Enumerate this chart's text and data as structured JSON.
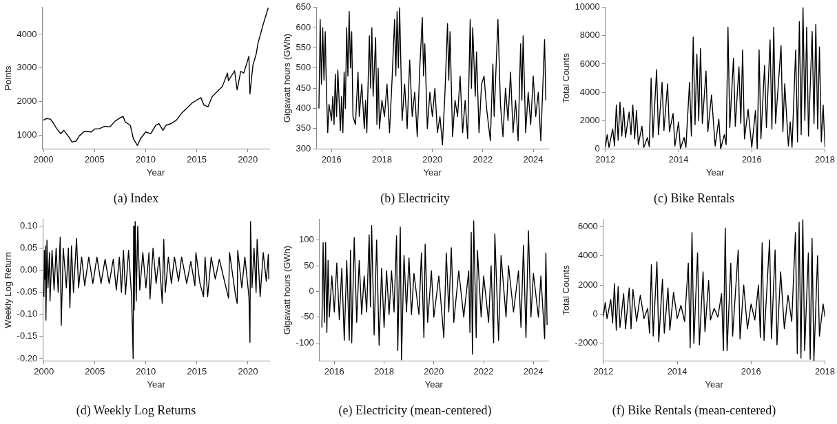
{
  "chart_data": [
    {
      "type": "line",
      "title": "(a) Index",
      "xlabel": "Year",
      "ylabel": "Points",
      "color": "#000000",
      "xlim": [
        1999.9,
        2022.1
      ],
      "xticks": [
        2000,
        2005,
        2010,
        2015,
        2020
      ],
      "ylim": [
        600,
        4800
      ],
      "yticks": [
        1000,
        2000,
        3000,
        4000
      ],
      "x": [
        2000,
        2000.3,
        2000.7,
        2001,
        2001.3,
        2001.7,
        2002,
        2002.5,
        2002.8,
        2003.2,
        2003.5,
        2004,
        2004.7,
        2005,
        2005.5,
        2006,
        2006.5,
        2007,
        2007.5,
        2007.8,
        2008,
        2008.5,
        2008.8,
        2009.2,
        2009.5,
        2010,
        2010.5,
        2011,
        2011.3,
        2011.7,
        2012,
        2012.5,
        2013,
        2013.5,
        2014,
        2014.5,
        2015,
        2015.4,
        2015.7,
        2016.1,
        2016.5,
        2017,
        2017.5,
        2018,
        2018.1,
        2018.7,
        2018.95,
        2019.3,
        2019.6,
        2020.1,
        2020.2,
        2020.5,
        2020.8,
        2021,
        2021.5,
        2021.9,
        2022
      ],
      "values": [
        1450,
        1500,
        1480,
        1350,
        1200,
        1050,
        1150,
        950,
        800,
        830,
        980,
        1120,
        1100,
        1190,
        1200,
        1270,
        1250,
        1420,
        1520,
        1560,
        1400,
        1300,
        900,
        700,
        900,
        1100,
        1050,
        1300,
        1350,
        1150,
        1300,
        1350,
        1450,
        1650,
        1800,
        1950,
        2050,
        2120,
        1900,
        1850,
        2150,
        2300,
        2450,
        2850,
        2620,
        2920,
        2350,
        2900,
        2850,
        3350,
        2230,
        3100,
        3400,
        3750,
        4300,
        4700,
        4790
      ]
    },
    {
      "type": "line",
      "title": "(b) Electricity",
      "xlabel": "Year",
      "ylabel": "Gigawatt hours (GWh)",
      "color": "#000000",
      "xlim": [
        2015.4,
        2024.6
      ],
      "xticks": [
        2016,
        2018,
        2020,
        2022,
        2024
      ],
      "ylim": [
        300,
        650
      ],
      "yticks": [
        300,
        350,
        400,
        450,
        500,
        550,
        600,
        650
      ],
      "x": [
        2015.5,
        2015.55,
        2015.6,
        2015.65,
        2015.7,
        2015.75,
        2015.8,
        2015.85,
        2015.9,
        2016.0,
        2016.05,
        2016.1,
        2016.15,
        2016.2,
        2016.25,
        2016.35,
        2016.4,
        2016.45,
        2016.5,
        2016.55,
        2016.6,
        2016.65,
        2016.7,
        2016.75,
        2016.8,
        2016.85,
        2016.95,
        2017.05,
        2017.1,
        2017.2,
        2017.3,
        2017.35,
        2017.4,
        2017.5,
        2017.55,
        2017.6,
        2017.65,
        2017.75,
        2017.8,
        2017.85,
        2017.9,
        2018.0,
        2018.1,
        2018.2,
        2018.3,
        2018.4,
        2018.5,
        2018.55,
        2018.6,
        2018.65,
        2018.7,
        2018.8,
        2018.9,
        2019.0,
        2019.1,
        2019.2,
        2019.3,
        2019.4,
        2019.5,
        2019.6,
        2019.65,
        2019.7,
        2019.8,
        2019.9,
        2020.0,
        2020.1,
        2020.2,
        2020.3,
        2020.4,
        2020.5,
        2020.6,
        2020.65,
        2020.7,
        2020.8,
        2020.9,
        2021.0,
        2021.1,
        2021.2,
        2021.3,
        2021.4,
        2021.5,
        2021.55,
        2021.6,
        2021.7,
        2021.75,
        2021.85,
        2021.95,
        2022.05,
        2022.15,
        2022.3,
        2022.4,
        2022.45,
        2022.6,
        2022.7,
        2022.8,
        2022.9,
        2023.0,
        2023.1,
        2023.2,
        2023.3,
        2023.4,
        2023.5,
        2023.55,
        2023.6,
        2023.7,
        2023.8,
        2023.9,
        2024.0,
        2024.1,
        2024.2,
        2024.3,
        2024.45,
        2024.5
      ],
      "values": [
        400,
        620,
        460,
        600,
        470,
        590,
        440,
        340,
        410,
        370,
        430,
        360,
        485,
        380,
        495,
        345,
        430,
        340,
        490,
        400,
        600,
        480,
        640,
        500,
        590,
        380,
        360,
        490,
        380,
        460,
        350,
        420,
        340,
        580,
        450,
        600,
        430,
        575,
        360,
        500,
        350,
        420,
        380,
        460,
        340,
        470,
        620,
        480,
        640,
        500,
        650,
        370,
        460,
        350,
        520,
        380,
        440,
        330,
        500,
        625,
        480,
        560,
        350,
        440,
        380,
        450,
        340,
        380,
        310,
        440,
        610,
        470,
        590,
        330,
        420,
        380,
        480,
        340,
        420,
        325,
        620,
        450,
        600,
        430,
        540,
        340,
        460,
        480,
        400,
        320,
        510,
        380,
        620,
        410,
        330,
        450,
        370,
        490,
        340,
        420,
        320,
        560,
        420,
        580,
        340,
        440,
        360,
        480,
        380,
        440,
        320,
        570,
        420
      ]
    },
    {
      "type": "line",
      "title": "(c) Bike Rentals",
      "xlabel": "Year",
      "ylabel": "Total Counts",
      "color": "#000000",
      "xlim": [
        2012,
        2018
      ],
      "xticks": [
        2012,
        2014,
        2016,
        2018
      ],
      "ylim": [
        0,
        10000
      ],
      "yticks": [
        0,
        2000,
        4000,
        6000,
        8000,
        10000
      ],
      "x": [
        2012.0,
        2012.05,
        2012.1,
        2012.2,
        2012.25,
        2012.3,
        2012.35,
        2012.4,
        2012.45,
        2012.5,
        2012.55,
        2012.65,
        2012.7,
        2012.75,
        2012.8,
        2012.85,
        2012.9,
        2013.0,
        2013.05,
        2013.15,
        2013.2,
        2013.25,
        2013.3,
        2013.4,
        2013.45,
        2013.55,
        2013.6,
        2013.7,
        2013.75,
        2013.85,
        2013.9,
        2014.0,
        2014.05,
        2014.15,
        2014.2,
        2014.3,
        2014.35,
        2014.4,
        2014.45,
        2014.5,
        2014.55,
        2014.6,
        2014.65,
        2014.75,
        2014.8,
        2014.9,
        2015.0,
        2015.1,
        2015.15,
        2015.25,
        2015.3,
        2015.35,
        2015.4,
        2015.5,
        2015.55,
        2015.65,
        2015.7,
        2015.75,
        2015.8,
        2015.9,
        2016.0,
        2016.1,
        2016.15,
        2016.2,
        2016.25,
        2016.35,
        2016.4,
        2016.5,
        2016.55,
        2016.6,
        2016.65,
        2016.8,
        2016.85,
        2016.9,
        2017.0,
        2017.05,
        2017.1,
        2017.2,
        2017.25,
        2017.3,
        2017.35,
        2017.4,
        2017.45,
        2017.5,
        2017.55,
        2017.65,
        2017.7,
        2017.75,
        2017.8,
        2017.85,
        2017.9,
        2017.95,
        2018.0
      ],
      "values": [
        100,
        1000,
        100,
        1400,
        200,
        3100,
        600,
        3300,
        900,
        2900,
        800,
        2600,
        1000,
        3100,
        700,
        2700,
        300,
        1600,
        100,
        800,
        150,
        5000,
        800,
        5600,
        1000,
        4700,
        1300,
        4600,
        1200,
        2500,
        200,
        1900,
        0,
        800,
        100,
        4700,
        900,
        7900,
        1700,
        6700,
        2000,
        7100,
        1800,
        5500,
        1200,
        3800,
        200,
        2100,
        0,
        1000,
        300,
        8600,
        1500,
        6400,
        1600,
        5800,
        1800,
        7000,
        700,
        2800,
        100,
        2700,
        0,
        7000,
        700,
        5900,
        1500,
        7700,
        1400,
        8600,
        1800,
        7300,
        1200,
        4600,
        200,
        1900,
        100,
        7000,
        500,
        9000,
        1000,
        10000,
        2000,
        8600,
        900,
        8300,
        1800,
        8800,
        1400,
        7200,
        500,
        3100,
        100
      ]
    },
    {
      "type": "line",
      "title": "(d) Weekly Log Returns",
      "xlabel": "Year",
      "ylabel": "Weekly Log Return",
      "color": "#000000",
      "xlim": [
        1999.9,
        2022.1
      ],
      "xticks": [
        2000,
        2005,
        2010,
        2015,
        2020
      ],
      "ylim": [
        -0.205,
        0.115
      ],
      "yticks": [
        {
          "value": -0.2,
          "label": "-0.20"
        },
        {
          "value": -0.15,
          "label": "-0.15"
        },
        {
          "value": -0.1,
          "label": "-0.10"
        },
        {
          "value": -0.05,
          "label": "-0.05"
        },
        {
          "value": 0,
          "label": "0.00"
        },
        {
          "value": 0.05,
          "label": "0.05"
        },
        {
          "value": 0.1,
          "label": "0.10"
        }
      ],
      "x": [
        2000.0,
        2000.05,
        2000.1,
        2000.15,
        2000.2,
        2000.3,
        2000.4,
        2000.55,
        2000.6,
        2000.8,
        2001.0,
        2001.2,
        2001.4,
        2001.6,
        2001.7,
        2001.9,
        2002.2,
        2002.4,
        2002.55,
        2002.7,
        2002.9,
        2003.2,
        2003.4,
        2003.7,
        2004.0,
        2004.4,
        2004.8,
        2005.2,
        2005.6,
        2006.0,
        2006.4,
        2006.8,
        2007.1,
        2007.4,
        2007.6,
        2007.8,
        2008.0,
        2008.3,
        2008.6,
        2008.75,
        2008.8,
        2008.85,
        2008.95,
        2009.05,
        2009.2,
        2009.4,
        2009.7,
        2010.0,
        2010.3,
        2010.4,
        2010.7,
        2011.0,
        2011.3,
        2011.6,
        2011.75,
        2011.9,
        2012.2,
        2012.5,
        2012.8,
        2013.2,
        2013.5,
        2014.0,
        2014.4,
        2014.8,
        2014.9,
        2015.3,
        2015.65,
        2015.8,
        2016.05,
        2016.4,
        2016.8,
        2017.2,
        2017.6,
        2018.1,
        2018.2,
        2018.8,
        2018.95,
        2019.0,
        2019.4,
        2019.7,
        2020.1,
        2020.2,
        2020.25,
        2020.4,
        2020.6,
        2020.8,
        2020.9,
        2021.2,
        2021.5,
        2021.8,
        2022.0,
        2022.05
      ],
      "values": [
        -0.06,
        0.045,
        -0.02,
        0.055,
        -0.113,
        0.068,
        -0.04,
        0.04,
        -0.07,
        0.045,
        -0.045,
        0.05,
        -0.05,
        0.075,
        -0.125,
        0.05,
        -0.04,
        0.05,
        -0.085,
        0.055,
        -0.05,
        0.072,
        -0.04,
        0.03,
        -0.035,
        0.03,
        -0.03,
        0.03,
        -0.03,
        0.025,
        -0.03,
        0.025,
        -0.045,
        0.03,
        -0.05,
        0.045,
        -0.055,
        0.045,
        -0.06,
        -0.2,
        0.1,
        -0.09,
        0.11,
        -0.07,
        0.1,
        -0.045,
        0.04,
        -0.04,
        0.04,
        -0.065,
        0.05,
        -0.03,
        0.03,
        -0.075,
        0.07,
        -0.05,
        0.03,
        -0.03,
        0.03,
        -0.025,
        0.03,
        -0.03,
        0.02,
        -0.035,
        0.04,
        -0.03,
        -0.06,
        0.03,
        -0.06,
        0.03,
        -0.02,
        0.025,
        -0.015,
        -0.063,
        0.04,
        -0.06,
        -0.075,
        0.045,
        -0.04,
        0.03,
        -0.06,
        -0.163,
        0.11,
        -0.04,
        0.05,
        -0.05,
        0.07,
        -0.06,
        0.04,
        -0.025,
        0.036,
        -0.02
      ]
    },
    {
      "type": "line",
      "title": "(e) Electricity (mean-centered)",
      "xlabel": "Year",
      "ylabel": "Gigawatt hours (GWh)",
      "color": "#000000",
      "xlim": [
        2015.4,
        2024.6
      ],
      "xticks": [
        2016,
        2018,
        2020,
        2022,
        2024
      ],
      "ylim": [
        -135,
        140
      ],
      "yticks": [
        -100,
        -50,
        0,
        50,
        100
      ],
      "x": [
        2015.5,
        2015.55,
        2015.6,
        2015.65,
        2015.7,
        2015.75,
        2015.8,
        2015.9,
        2016.0,
        2016.1,
        2016.2,
        2016.3,
        2016.4,
        2016.5,
        2016.6,
        2016.65,
        2016.7,
        2016.8,
        2016.9,
        2017.0,
        2017.1,
        2017.2,
        2017.3,
        2017.4,
        2017.45,
        2017.5,
        2017.6,
        2017.7,
        2017.8,
        2017.9,
        2018.0,
        2018.1,
        2018.2,
        2018.3,
        2018.4,
        2018.5,
        2018.55,
        2018.65,
        2018.7,
        2018.8,
        2018.9,
        2019.0,
        2019.1,
        2019.2,
        2019.4,
        2019.5,
        2019.6,
        2019.65,
        2019.75,
        2019.9,
        2020.0,
        2020.2,
        2020.4,
        2020.5,
        2020.6,
        2020.7,
        2020.8,
        2021.0,
        2021.2,
        2021.4,
        2021.45,
        2021.5,
        2021.55,
        2021.6,
        2021.7,
        2021.75,
        2021.9,
        2022.0,
        2022.2,
        2022.3,
        2022.4,
        2022.45,
        2022.6,
        2022.7,
        2022.9,
        2023.0,
        2023.2,
        2023.4,
        2023.5,
        2023.6,
        2023.7,
        2023.8,
        2023.9,
        2024.0,
        2024.2,
        2024.3,
        2024.45,
        2024.5,
        2024.55
      ],
      "values": [
        -70,
        95,
        -60,
        95,
        -80,
        60,
        -50,
        30,
        -40,
        55,
        -55,
        45,
        -95,
        60,
        -95,
        80,
        -100,
        105,
        -60,
        60,
        -45,
        30,
        -40,
        110,
        -30,
        128,
        -85,
        100,
        -105,
        45,
        -70,
        40,
        -45,
        40,
        -40,
        108,
        -115,
        125,
        -133,
        70,
        -40,
        65,
        -45,
        35,
        -45,
        75,
        -90,
        92,
        -60,
        40,
        -50,
        30,
        -90,
        75,
        -40,
        85,
        -60,
        40,
        -50,
        40,
        -80,
        115,
        -122,
        137,
        -90,
        80,
        -50,
        30,
        -60,
        50,
        -100,
        112,
        -95,
        70,
        -50,
        50,
        -40,
        40,
        -70,
        90,
        -90,
        118,
        -50,
        35,
        -50,
        30,
        -92,
        75,
        -65
      ]
    },
    {
      "type": "line",
      "title": "(f) Bike Rentals (mean-centered)",
      "xlabel": "Year",
      "ylabel": "Total Counts",
      "color": "#000000",
      "xlim": [
        2012,
        2018
      ],
      "xticks": [
        2012,
        2014,
        2016,
        2018
      ],
      "ylim": [
        -3200,
        6500
      ],
      "yticks": [
        -2000,
        0,
        2000,
        4000,
        6000
      ],
      "x": [
        2012.0,
        2012.05,
        2012.1,
        2012.2,
        2012.25,
        2012.3,
        2012.35,
        2012.4,
        2012.45,
        2012.55,
        2012.6,
        2012.7,
        2012.75,
        2012.8,
        2012.9,
        2013.0,
        2013.1,
        2013.2,
        2013.25,
        2013.3,
        2013.35,
        2013.45,
        2013.5,
        2013.6,
        2013.65,
        2013.75,
        2013.8,
        2013.9,
        2014.0,
        2014.1,
        2014.2,
        2014.3,
        2014.35,
        2014.4,
        2014.45,
        2014.55,
        2014.6,
        2014.7,
        2014.75,
        2014.85,
        2014.9,
        2015.0,
        2015.1,
        2015.2,
        2015.25,
        2015.3,
        2015.35,
        2015.45,
        2015.5,
        2015.65,
        2015.7,
        2015.8,
        2015.9,
        2016.0,
        2016.1,
        2016.2,
        2016.25,
        2016.3,
        2016.35,
        2016.5,
        2016.55,
        2016.65,
        2016.7,
        2016.8,
        2016.9,
        2017.0,
        2017.1,
        2017.2,
        2017.25,
        2017.3,
        2017.35,
        2017.4,
        2017.45,
        2017.55,
        2017.6,
        2017.65,
        2017.7,
        2017.8,
        2017.85,
        2017.95,
        2018.0
      ],
      "values": [
        -150,
        800,
        -300,
        1000,
        -600,
        2100,
        -1100,
        1900,
        -900,
        1400,
        -1000,
        1800,
        -1000,
        1700,
        -500,
        1300,
        -300,
        400,
        -1300,
        3400,
        -1500,
        3600,
        -1900,
        2400,
        -1300,
        1800,
        -1100,
        1500,
        -300,
        600,
        -500,
        3500,
        -2300,
        5600,
        -2000,
        4200,
        -2100,
        2900,
        -1200,
        2300,
        -400,
        400,
        -200,
        1400,
        -2500,
        5900,
        -2500,
        3500,
        -1500,
        4400,
        -1700,
        2000,
        -1000,
        700,
        -400,
        2000,
        -1600,
        4900,
        -1800,
        5100,
        -1700,
        4400,
        -2100,
        2900,
        -1000,
        1300,
        -500,
        5600,
        -2700,
        6300,
        -3000,
        6500,
        -2500,
        4200,
        -3100,
        5200,
        -3200,
        4000,
        -1500,
        700,
        -200
      ]
    }
  ]
}
